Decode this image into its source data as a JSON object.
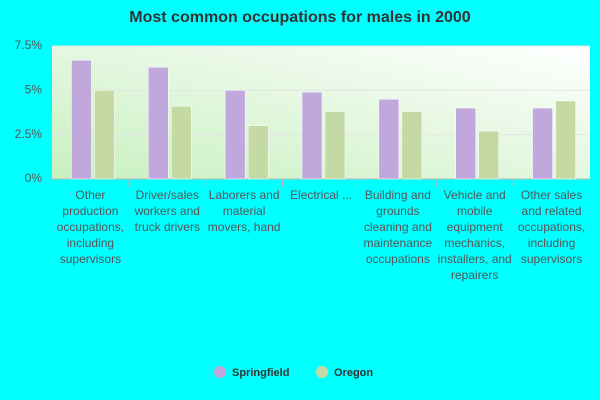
{
  "chart_data": {
    "type": "bar",
    "title": "Most common occupations for males in 2000",
    "categories": [
      "Other production occupations, including supervisors",
      "Driver/sales workers and truck drivers",
      "Laborers and material movers, hand",
      "Electrical ...",
      "Building and grounds cleaning and maintenance occupations",
      "Vehicle and mobile equipment mechanics, installers, and repairers",
      "Other sales and related occupations, including supervisors"
    ],
    "series": [
      {
        "name": "Springfield",
        "color": "#c0a8dc",
        "values": [
          6.7,
          6.3,
          5.0,
          4.9,
          4.5,
          4.0,
          4.0
        ]
      },
      {
        "name": "Oregon",
        "color": "#c4d9a4",
        "values": [
          5.0,
          4.1,
          3.0,
          3.8,
          3.8,
          2.7,
          4.4
        ]
      }
    ],
    "ylim": [
      0,
      7.5
    ],
    "yticks": [
      {
        "value": 0,
        "label": "0%"
      },
      {
        "value": 2.5,
        "label": "2.5%"
      },
      {
        "value": 5,
        "label": "5%"
      },
      {
        "value": 7.5,
        "label": "7.5%"
      }
    ],
    "grid": true
  }
}
